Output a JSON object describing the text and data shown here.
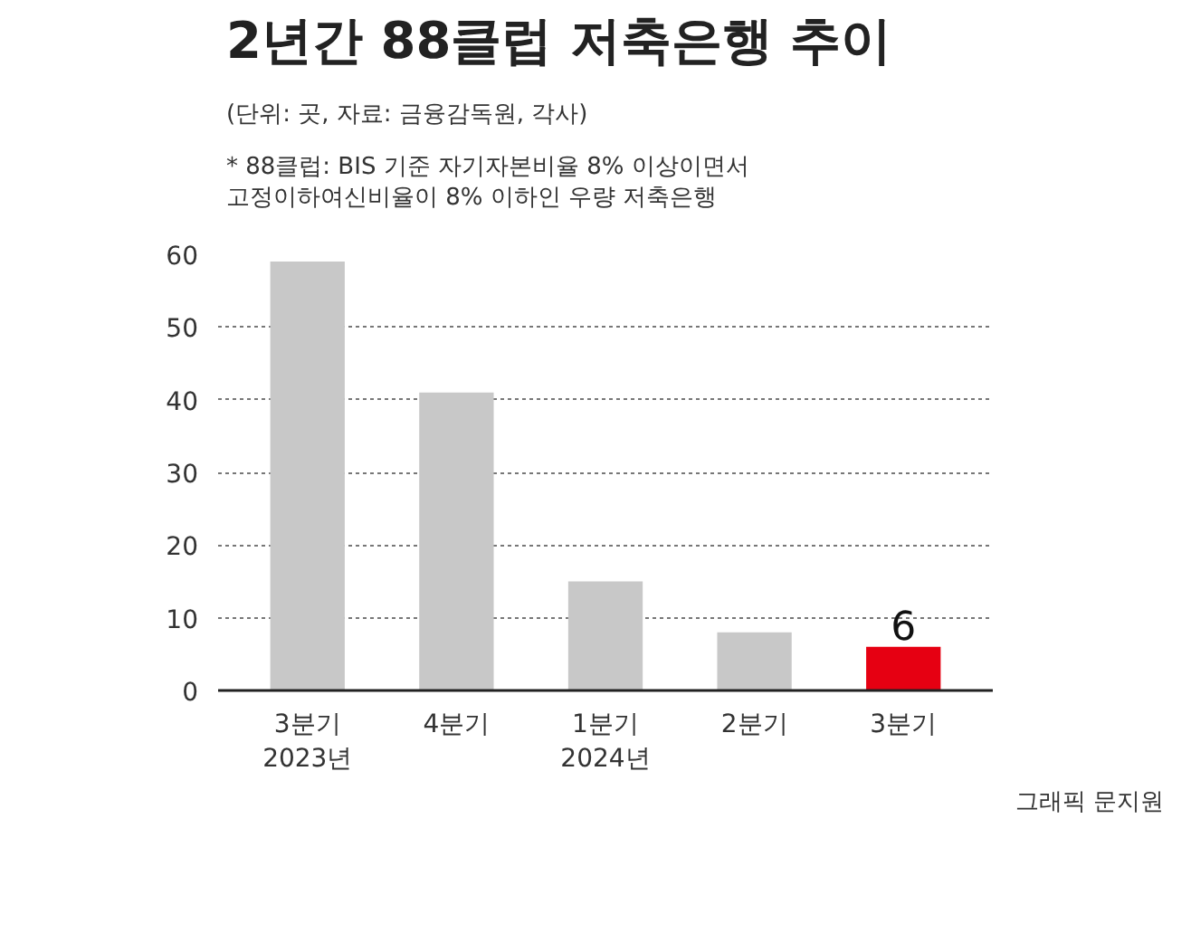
{
  "chart_data": {
    "type": "bar",
    "title": "2년간 88클럽 저축은행 추이",
    "subtitle": "(단위: 곳, 자료: 금융감독원, 각사)",
    "annotations": [
      "* 88클럽: BIS 기준 자기자본비율 8% 이상이면서\n고정이하여신비율이 8% 이하인 우량 저축은행",
      "그래픽 문지원"
    ],
    "categories": [
      "3분기\n2023년",
      "4분기",
      "1분기\n2024년",
      "2분기",
      "3분기"
    ],
    "values": [
      59,
      41,
      15,
      8,
      6
    ],
    "colors": [
      "#c8c8c8",
      "#c8c8c8",
      "#c8c8c8",
      "#c8c8c8",
      "#e60012"
    ],
    "value_labels": [
      null,
      null,
      null,
      null,
      "6"
    ],
    "ylim": [
      0,
      60
    ],
    "yticks": [
      0,
      10,
      20,
      30,
      40,
      50,
      60
    ],
    "grid": "y"
  }
}
